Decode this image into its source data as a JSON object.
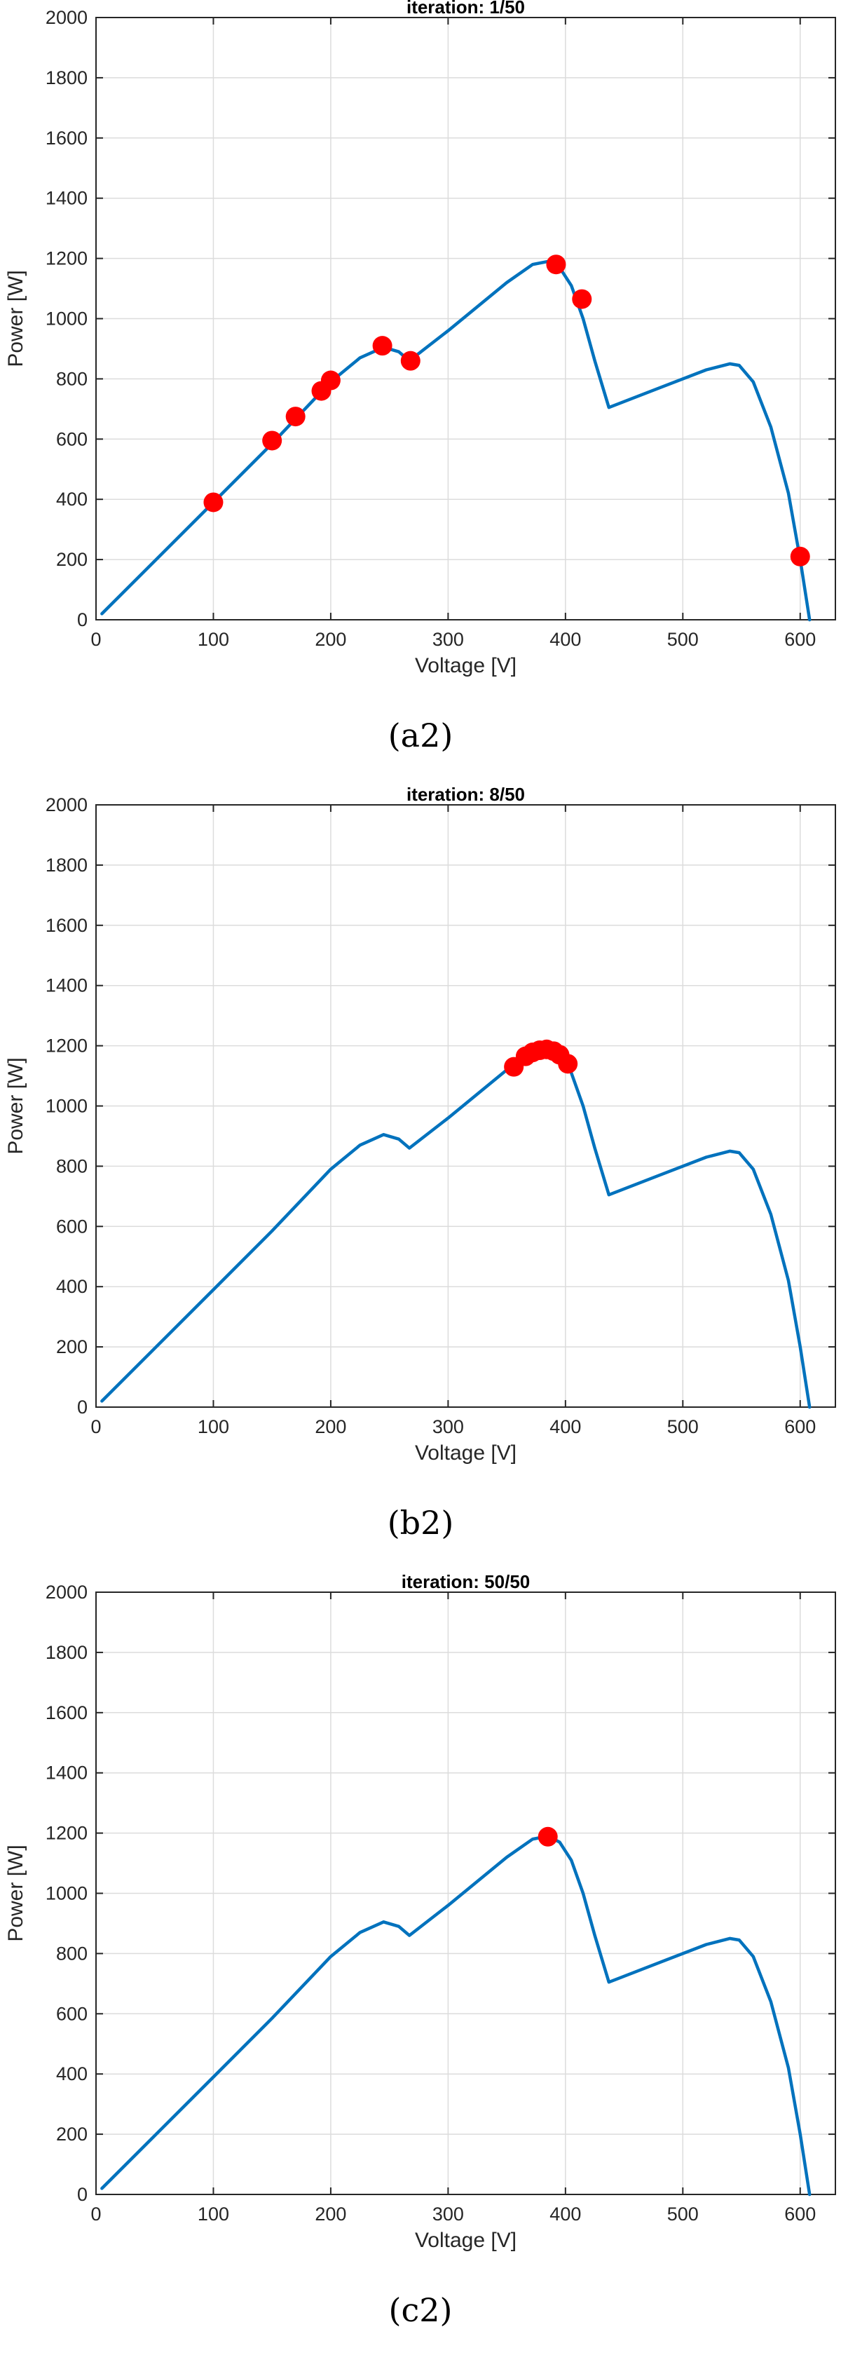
{
  "chart_data": [
    {
      "type": "line",
      "title": "iteration: 1/50",
      "caption": "(a2)",
      "xlabel": "Voltage [V]",
      "ylabel": "Power [W]",
      "xlim": [
        0,
        630
      ],
      "ylim": [
        0,
        2000
      ],
      "xticks": [
        0,
        100,
        200,
        300,
        400,
        500,
        600
      ],
      "yticks": [
        0,
        200,
        400,
        600,
        800,
        1000,
        1200,
        1400,
        1600,
        1800,
        2000
      ],
      "grid": true,
      "series": [
        {
          "color": "#0072BD",
          "x": [
            5,
            50,
            100,
            150,
            200,
            225,
            245,
            258,
            267,
            300,
            350,
            372,
            385,
            395,
            405,
            415,
            425,
            437,
            480,
            520,
            540,
            548,
            560,
            575,
            590,
            600,
            608
          ],
          "y": [
            20,
            195,
            390,
            585,
            790,
            870,
            905,
            890,
            860,
            960,
            1120,
            1180,
            1190,
            1170,
            1110,
            1000,
            860,
            705,
            770,
            830,
            850,
            845,
            790,
            640,
            420,
            200,
            0
          ]
        }
      ],
      "points": {
        "color": "#FF0000",
        "x": [
          100,
          150,
          170,
          192,
          200,
          244,
          268,
          392,
          414,
          600
        ],
        "y": [
          390,
          595,
          675,
          760,
          795,
          910,
          860,
          1180,
          1065,
          210
        ]
      }
    },
    {
      "type": "line",
      "title": "iteration: 8/50",
      "caption": "(b2)",
      "xlabel": "Voltage [V]",
      "ylabel": "Power [W]",
      "xlim": [
        0,
        630
      ],
      "ylim": [
        0,
        2000
      ],
      "xticks": [
        0,
        100,
        200,
        300,
        400,
        500,
        600
      ],
      "yticks": [
        0,
        200,
        400,
        600,
        800,
        1000,
        1200,
        1400,
        1600,
        1800,
        2000
      ],
      "grid": true,
      "series": [
        {
          "color": "#0072BD",
          "x": [
            5,
            50,
            100,
            150,
            200,
            225,
            245,
            258,
            267,
            300,
            350,
            372,
            385,
            395,
            405,
            415,
            425,
            437,
            480,
            520,
            540,
            548,
            560,
            575,
            590,
            600,
            608
          ],
          "y": [
            20,
            195,
            390,
            585,
            790,
            870,
            905,
            890,
            860,
            960,
            1120,
            1180,
            1190,
            1170,
            1110,
            1000,
            860,
            705,
            770,
            830,
            850,
            845,
            790,
            640,
            420,
            200,
            0
          ]
        }
      ],
      "points": {
        "color": "#FF0000",
        "x": [
          356,
          366,
          372,
          378,
          384,
          390,
          395,
          402
        ],
        "y": [
          1130,
          1165,
          1178,
          1185,
          1188,
          1182,
          1170,
          1140
        ]
      }
    },
    {
      "type": "line",
      "title": "iteration: 50/50",
      "caption": "(c2)",
      "xlabel": "Voltage [V]",
      "ylabel": "Power [W]",
      "xlim": [
        0,
        630
      ],
      "ylim": [
        0,
        2000
      ],
      "xticks": [
        0,
        100,
        200,
        300,
        400,
        500,
        600
      ],
      "yticks": [
        0,
        200,
        400,
        600,
        800,
        1000,
        1200,
        1400,
        1600,
        1800,
        2000
      ],
      "grid": true,
      "series": [
        {
          "color": "#0072BD",
          "x": [
            5,
            50,
            100,
            150,
            200,
            225,
            245,
            258,
            267,
            300,
            350,
            372,
            385,
            395,
            405,
            415,
            425,
            437,
            480,
            520,
            540,
            548,
            560,
            575,
            590,
            600,
            608
          ],
          "y": [
            20,
            195,
            390,
            585,
            790,
            870,
            905,
            890,
            860,
            960,
            1120,
            1180,
            1190,
            1170,
            1110,
            1000,
            860,
            705,
            770,
            830,
            850,
            845,
            790,
            640,
            420,
            200,
            0
          ]
        }
      ],
      "points": {
        "color": "#FF0000",
        "x": [
          385
        ],
        "y": [
          1188
        ]
      }
    }
  ]
}
